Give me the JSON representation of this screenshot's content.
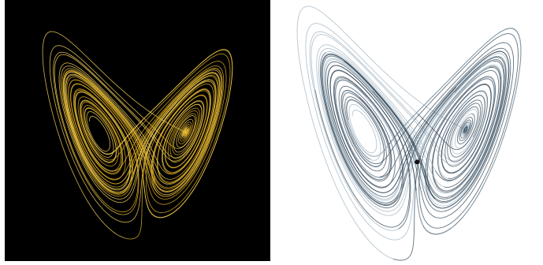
{
  "image": {
    "type": "side-by-side comparison",
    "subject": "lorenz-attractor",
    "panels": [
      {
        "id": "left",
        "background": "#000000",
        "trajectory_color": "#E3B125",
        "trajectory_glow": "#F8D35A"
      },
      {
        "id": "right",
        "background": "#ffffff",
        "trajectory_color": "#2F4455",
        "trajectory_light": "#9FB3C0",
        "marker_color": "#111111"
      }
    ]
  }
}
